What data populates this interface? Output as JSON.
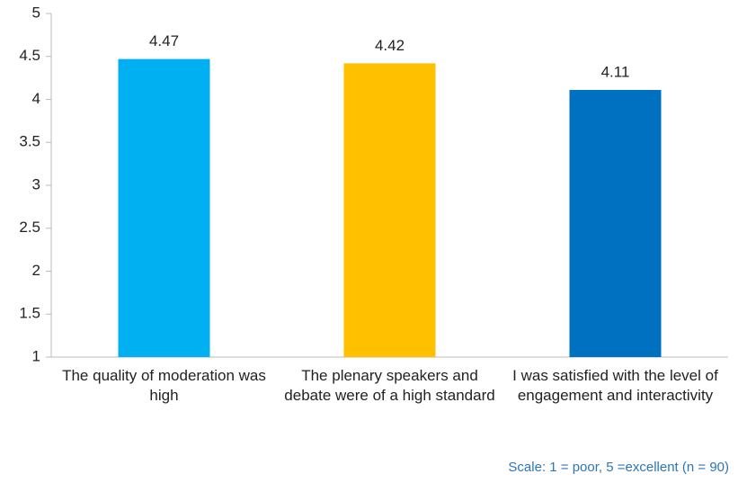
{
  "chart_data": {
    "type": "bar",
    "categories": [
      "The quality of moderation was high",
      "The plenary speakers and debate were of a high standard",
      "I was satisfied with the level of engagement and interactivity"
    ],
    "values": [
      4.47,
      4.42,
      4.11
    ],
    "colors": [
      "#00b0f0",
      "#ffc000",
      "#0070c0"
    ],
    "ylim": [
      1,
      5
    ],
    "yticks": [
      1,
      1.5,
      2,
      2.5,
      3,
      3.5,
      4,
      4.5,
      5
    ],
    "grid": false,
    "annotation": "Scale: 1 = poor, 5 =excellent (n = 90)"
  }
}
